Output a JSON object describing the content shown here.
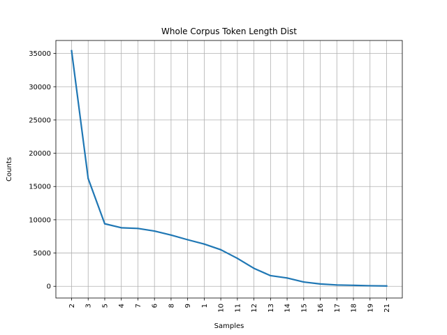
{
  "chart_data": {
    "type": "line",
    "title": "Whole Corpus Token Length Dist",
    "xlabel": "Samples",
    "ylabel": "Counts",
    "categories": [
      "2",
      "3",
      "5",
      "4",
      "7",
      "6",
      "8",
      "9",
      "1",
      "10",
      "11",
      "12",
      "13",
      "14",
      "15",
      "16",
      "17",
      "18",
      "19",
      "21"
    ],
    "series": [
      {
        "values": [
          35400,
          16200,
          9400,
          8800,
          8700,
          8300,
          7700,
          7000,
          6350,
          5500,
          4200,
          2700,
          1600,
          1250,
          650,
          350,
          200,
          150,
          80,
          50
        ]
      }
    ],
    "ylim": [
      -1760,
      36950
    ],
    "yticks": [
      0,
      5000,
      10000,
      15000,
      20000,
      25000,
      30000,
      35000
    ],
    "grid": true,
    "legend": "none",
    "color": "#1f77b4"
  }
}
